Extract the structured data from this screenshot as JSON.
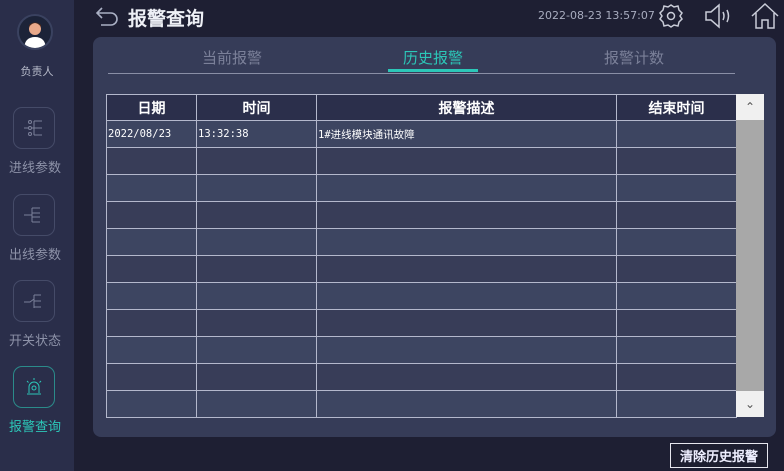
{
  "sidebar": {
    "user_label": "负责人",
    "items": [
      {
        "label": "进线参数",
        "icon": "incoming-line-icon",
        "active": false
      },
      {
        "label": "出线参数",
        "icon": "outgoing-line-icon",
        "active": false
      },
      {
        "label": "开关状态",
        "icon": "switch-icon",
        "active": false
      },
      {
        "label": "报警查询",
        "icon": "alarm-icon",
        "active": true
      }
    ]
  },
  "header": {
    "title": "报警查询",
    "datetime": "2022-08-23 13:57:07"
  },
  "tabs": [
    {
      "label": "当前报警"
    },
    {
      "label": "历史报警",
      "active": true
    },
    {
      "label": "报警计数"
    }
  ],
  "table": {
    "columns": [
      "日期",
      "时间",
      "报警描述",
      "结束时间"
    ],
    "rows": [
      [
        "2022/08/23",
        "13:32:38",
        "1#进线模块通讯故障",
        ""
      ],
      [
        "",
        "",
        "",
        ""
      ],
      [
        "",
        "",
        "",
        ""
      ],
      [
        "",
        "",
        "",
        ""
      ],
      [
        "",
        "",
        "",
        ""
      ],
      [
        "",
        "",
        "",
        ""
      ],
      [
        "",
        "",
        "",
        ""
      ],
      [
        "",
        "",
        "",
        ""
      ],
      [
        "",
        "",
        "",
        ""
      ],
      [
        "",
        "",
        "",
        ""
      ],
      [
        "",
        "",
        "",
        ""
      ]
    ]
  },
  "scroll": {
    "up": "⌃",
    "down": "⌄"
  },
  "actions": {
    "clear_label": "清除历史报警"
  },
  "colors": {
    "accent": "#2cc7b8",
    "background": "#1e1f33",
    "panel": "#363c58",
    "sidebar": "#2a2e4a"
  }
}
